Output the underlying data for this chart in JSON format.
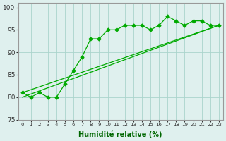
{
  "title": "",
  "xlabel": "Humidité relative (%)",
  "ylabel": "",
  "xlim": [
    -0.5,
    23.5
  ],
  "ylim": [
    75,
    101
  ],
  "yticks": [
    75,
    80,
    85,
    90,
    95,
    100
  ],
  "xtick_labels": [
    "0",
    "1",
    "2",
    "3",
    "4",
    "5",
    "6",
    "7",
    "8",
    "9",
    "10",
    "11",
    "12",
    "13",
    "14",
    "15",
    "16",
    "17",
    "18",
    "19",
    "20",
    "21",
    "22",
    "23"
  ],
  "background_color": "#dff0ee",
  "grid_color": "#aad4cc",
  "line_color": "#00aa00",
  "line1_x": [
    0,
    1,
    2,
    3,
    4,
    5,
    6,
    7,
    8,
    9,
    10,
    11,
    12,
    13,
    14,
    15,
    16,
    17,
    18,
    19,
    20,
    21,
    22,
    23
  ],
  "line1_y": [
    81,
    80,
    81,
    80,
    80,
    83,
    86,
    89,
    93,
    93,
    95,
    95,
    96,
    96,
    96,
    95,
    96,
    98,
    97,
    96,
    97,
    97,
    96,
    96
  ],
  "line2_x": [
    0,
    23
  ],
  "line2_y": [
    81,
    96
  ],
  "line3_x": [
    0,
    23
  ],
  "line3_y": [
    80,
    96
  ]
}
